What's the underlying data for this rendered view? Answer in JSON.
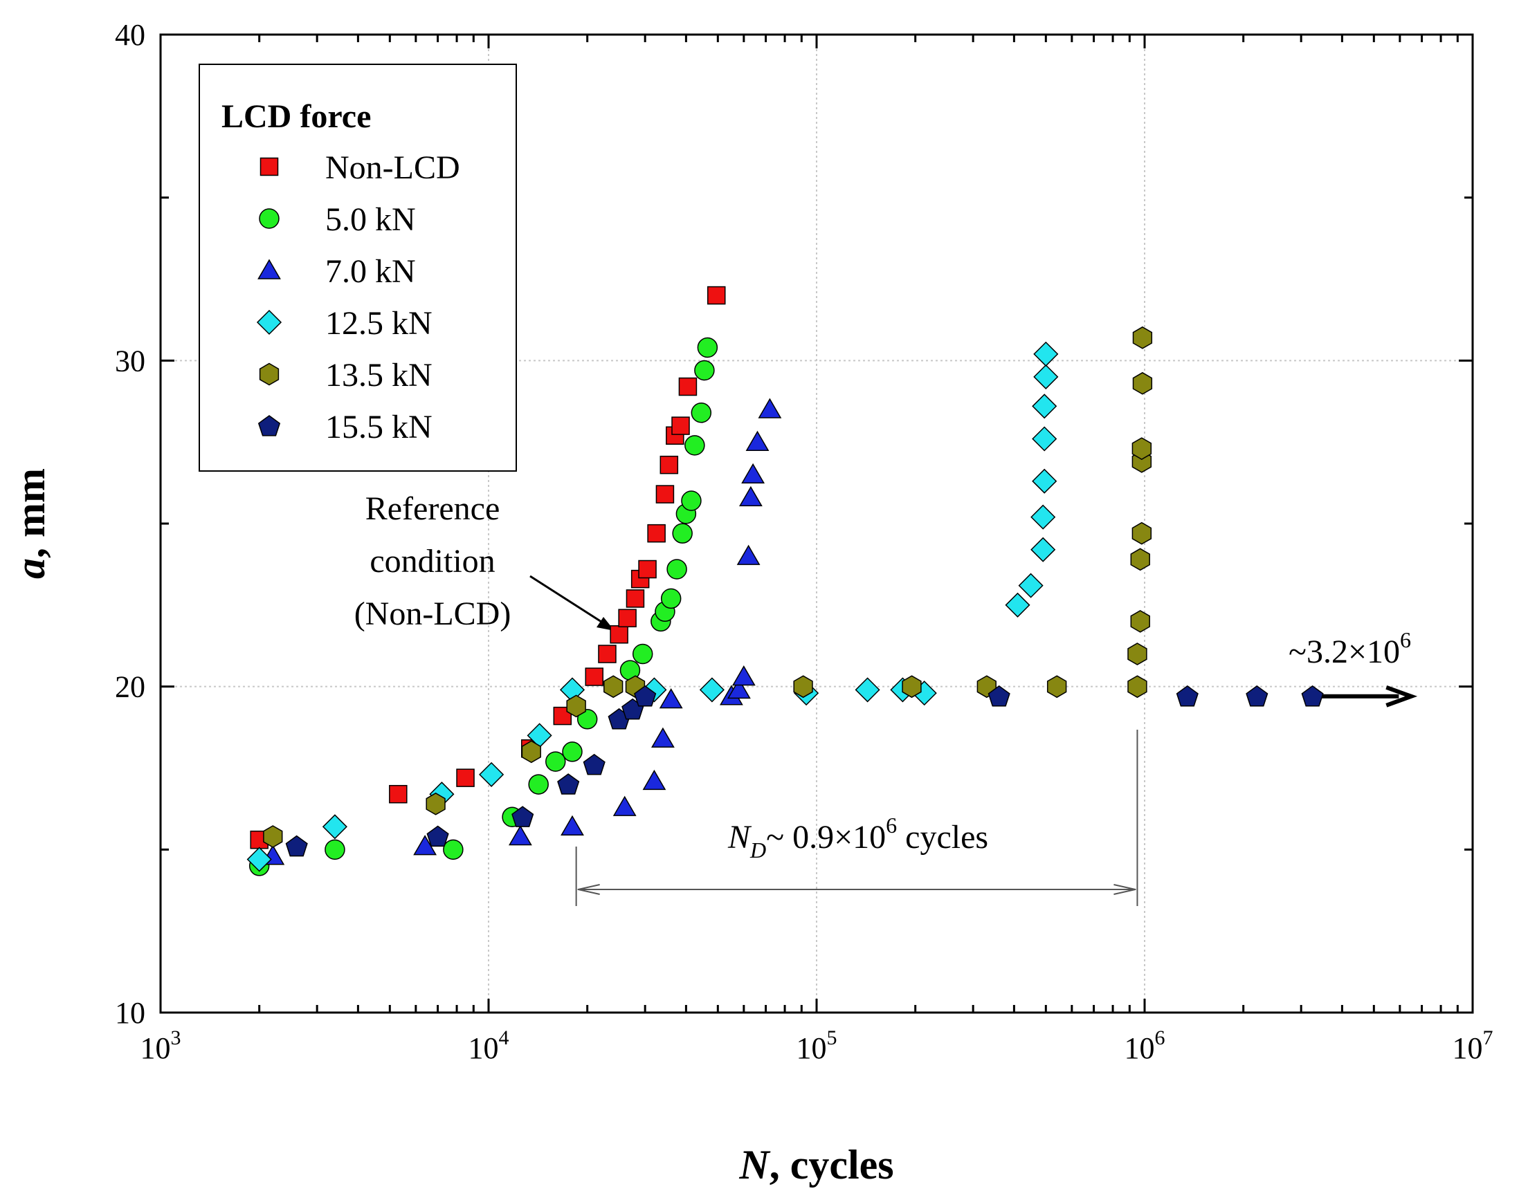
{
  "chart_data": {
    "type": "scatter",
    "xscale": "log",
    "xlim": [
      1000,
      10000000
    ],
    "ylim": [
      10,
      40
    ],
    "x_ticks": [
      {
        "value": 1000,
        "mant": "10",
        "exp": "3"
      },
      {
        "value": 10000,
        "mant": "10",
        "exp": "4"
      },
      {
        "value": 100000,
        "mant": "10",
        "exp": "5"
      },
      {
        "value": 1000000,
        "mant": "10",
        "exp": "6"
      },
      {
        "value": 10000000,
        "mant": "10",
        "exp": "7"
      }
    ],
    "y_ticks": [
      {
        "value": 10,
        "label": "10"
      },
      {
        "value": 20,
        "label": "20"
      },
      {
        "value": 30,
        "label": "30"
      },
      {
        "value": 40,
        "label": "40"
      }
    ],
    "xlabel": {
      "var": "N",
      "rest": ", cycles"
    },
    "ylabel": {
      "var": "a",
      "rest": ", mm"
    },
    "grid": true,
    "legend": {
      "title": "LCD force",
      "placement": "top-left"
    },
    "series": [
      {
        "name": "Non-LCD",
        "marker": "square",
        "color": "#ee1111",
        "points": [
          [
            2000,
            15.3
          ],
          [
            5300,
            16.7
          ],
          [
            8500,
            17.2
          ],
          [
            13400,
            18.1
          ],
          [
            16800,
            19.1
          ],
          [
            21000,
            20.3
          ],
          [
            23000,
            21.0
          ],
          [
            25000,
            21.6
          ],
          [
            26500,
            22.1
          ],
          [
            28000,
            22.7
          ],
          [
            29000,
            23.3
          ],
          [
            30500,
            23.6
          ],
          [
            32500,
            24.7
          ],
          [
            34500,
            25.9
          ],
          [
            35500,
            26.8
          ],
          [
            37000,
            27.7
          ],
          [
            38500,
            28.0
          ],
          [
            40500,
            29.2
          ],
          [
            49500,
            32.0
          ]
        ]
      },
      {
        "name": "5.0 kN",
        "marker": "circle",
        "color": "#22ee22",
        "points": [
          [
            2000,
            14.5
          ],
          [
            3400,
            15.0
          ],
          [
            7800,
            15.0
          ],
          [
            11800,
            16.0
          ],
          [
            14200,
            17.0
          ],
          [
            16000,
            17.7
          ],
          [
            18000,
            18.0
          ],
          [
            20000,
            19.0
          ],
          [
            27000,
            20.5
          ],
          [
            29500,
            21.0
          ],
          [
            33500,
            22.0
          ],
          [
            34500,
            22.3
          ],
          [
            36000,
            22.7
          ],
          [
            37500,
            23.6
          ],
          [
            39000,
            24.7
          ],
          [
            40000,
            25.3
          ],
          [
            41500,
            25.7
          ],
          [
            42500,
            27.4
          ],
          [
            44500,
            28.4
          ],
          [
            45500,
            29.7
          ],
          [
            46500,
            30.4
          ]
        ]
      },
      {
        "name": "7.0 kN",
        "marker": "triangle",
        "color": "#1a28dd",
        "points": [
          [
            2200,
            14.8
          ],
          [
            6400,
            15.1
          ],
          [
            12500,
            15.4
          ],
          [
            18000,
            15.7
          ],
          [
            26000,
            16.3
          ],
          [
            32000,
            17.1
          ],
          [
            34000,
            18.4
          ],
          [
            36000,
            19.6
          ],
          [
            55000,
            19.7
          ],
          [
            58000,
            19.9
          ],
          [
            60000,
            20.3
          ],
          [
            62000,
            24.0
          ],
          [
            63000,
            25.8
          ],
          [
            64000,
            26.5
          ],
          [
            66000,
            27.5
          ],
          [
            72000,
            28.5
          ]
        ]
      },
      {
        "name": "12.5 kN",
        "marker": "diamond",
        "color": "#22e5ef",
        "points": [
          [
            2000,
            14.7
          ],
          [
            3400,
            15.7
          ],
          [
            7200,
            16.7
          ],
          [
            10200,
            17.3
          ],
          [
            14300,
            18.5
          ],
          [
            18000,
            19.9
          ],
          [
            32000,
            19.9
          ],
          [
            48000,
            19.9
          ],
          [
            93000,
            19.8
          ],
          [
            143000,
            19.9
          ],
          [
            183000,
            19.9
          ],
          [
            213000,
            19.8
          ],
          [
            410000,
            22.5
          ],
          [
            450000,
            23.1
          ],
          [
            490000,
            24.2
          ],
          [
            490000,
            25.2
          ],
          [
            495000,
            26.3
          ],
          [
            495000,
            27.6
          ],
          [
            495000,
            28.6
          ],
          [
            500000,
            29.5
          ],
          [
            500000,
            30.2
          ]
        ]
      },
      {
        "name": "13.5 kN",
        "marker": "hexagon",
        "color": "#878711",
        "points": [
          [
            2200,
            15.4
          ],
          [
            6900,
            16.4
          ],
          [
            13500,
            18.0
          ],
          [
            18500,
            19.4
          ],
          [
            24000,
            20.0
          ],
          [
            28000,
            20.0
          ],
          [
            91000,
            20.0
          ],
          [
            195000,
            20.0
          ],
          [
            330000,
            20.0
          ],
          [
            540000,
            20.0
          ],
          [
            950000,
            20.0
          ],
          [
            950000,
            21.0
          ],
          [
            970000,
            22.0
          ],
          [
            970000,
            23.9
          ],
          [
            980000,
            24.7
          ],
          [
            980000,
            26.9
          ],
          [
            980000,
            27.3
          ],
          [
            985000,
            29.3
          ],
          [
            985000,
            30.7
          ]
        ]
      },
      {
        "name": "15.5 kN",
        "marker": "pentagon",
        "color": "#0e1e7c",
        "points": [
          [
            2600,
            15.1
          ],
          [
            7000,
            15.4
          ],
          [
            12700,
            16.0
          ],
          [
            17500,
            17.0
          ],
          [
            21000,
            17.6
          ],
          [
            25000,
            19.0
          ],
          [
            27500,
            19.3
          ],
          [
            30000,
            19.7
          ],
          [
            360000,
            19.7
          ],
          [
            1350000,
            19.7
          ],
          [
            2200000,
            19.7
          ],
          [
            3250000,
            19.7
          ]
        ]
      }
    ],
    "annotations": {
      "reference": {
        "lines": [
          "Reference",
          "condition",
          "(Non-LCD)"
        ]
      },
      "nd": {
        "sym": "N",
        "sub": "D",
        "prefix": "~ 0.9×10",
        "sup": "6",
        "suffix": " cycles",
        "x_start": 18500,
        "x_end": 950000
      },
      "runout": {
        "prefix": "~3.2×10",
        "sup": "6",
        "x_start": 3300000,
        "x_end": 6500000,
        "y": 19.7
      }
    }
  }
}
